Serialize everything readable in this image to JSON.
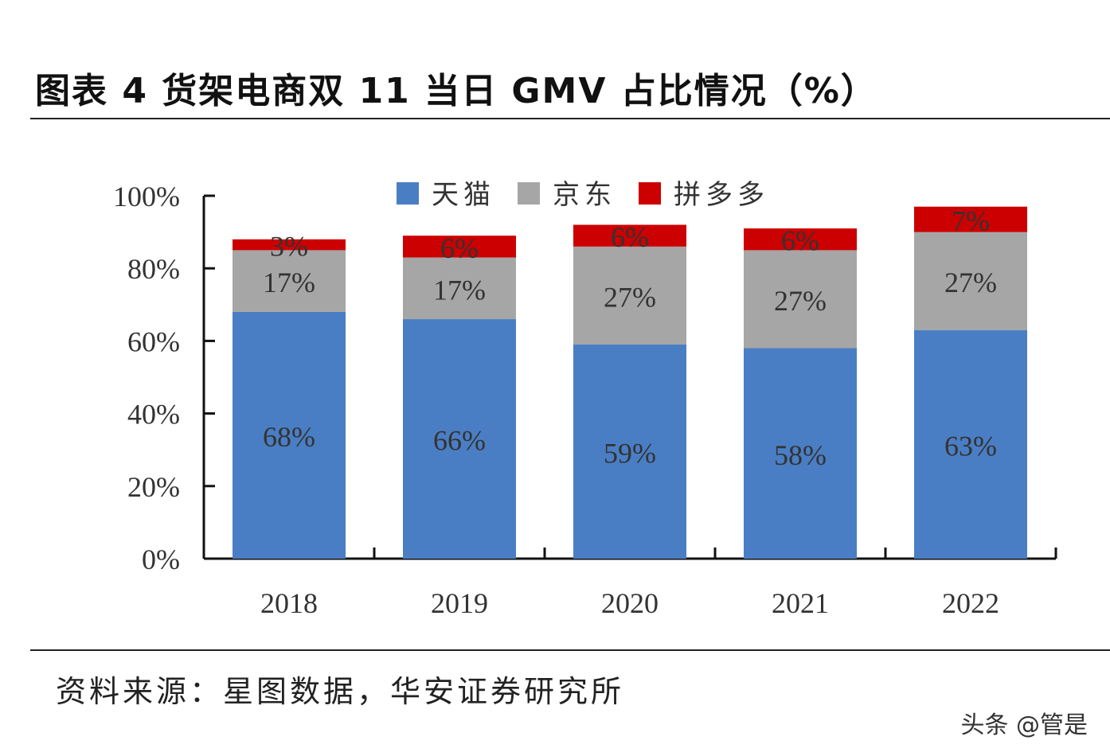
{
  "title": "图表 4 货架电商双 11 当日 GMV 占比情况（%）",
  "source": "资料来源：星图数据，华安证券研究所",
  "watermark": "头条 @管是",
  "chart_data": {
    "type": "bar",
    "stacked": true,
    "categories": [
      "2018",
      "2019",
      "2020",
      "2021",
      "2022"
    ],
    "series": [
      {
        "name": "天猫",
        "color": "#4a7ec4",
        "values": [
          68,
          66,
          59,
          58,
          63
        ],
        "labels": [
          "68%",
          "66%",
          "59%",
          "58%",
          "63%"
        ]
      },
      {
        "name": "京东",
        "color": "#a6a6a6",
        "values": [
          17,
          17,
          27,
          27,
          27
        ],
        "labels": [
          "17%",
          "17%",
          "27%",
          "27%",
          "27%"
        ]
      },
      {
        "name": "拼多多",
        "color": "#cc0000",
        "values": [
          3,
          6,
          6,
          6,
          7
        ],
        "labels": [
          "3%",
          "6%",
          "6%",
          "6%",
          "7%"
        ]
      }
    ],
    "ylim": [
      0,
      100
    ],
    "yticks": [
      "0%",
      "20%",
      "40%",
      "60%",
      "80%",
      "100%"
    ],
    "grid": false,
    "legend": "top-center"
  }
}
